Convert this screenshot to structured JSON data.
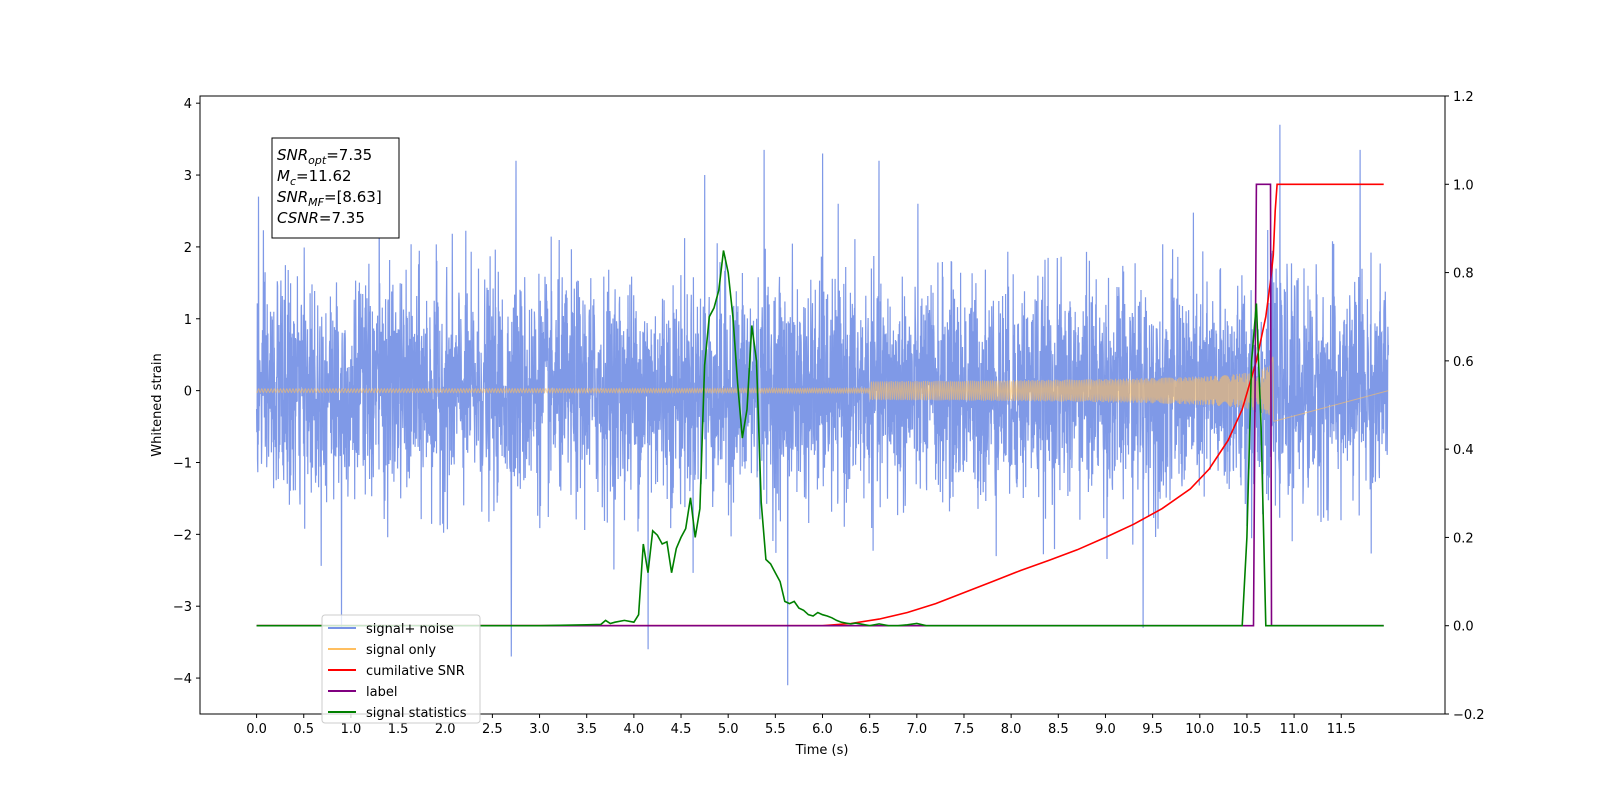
{
  "chart_data": {
    "type": "line",
    "xlabel": "Time (s)",
    "ylabel": "Whitened strain",
    "xlim": [
      -0.6,
      12.6
    ],
    "ylim": [
      -4.5,
      4.1
    ],
    "y2lim": [
      -0.2,
      1.2
    ],
    "xticks": [
      "0.0",
      "0.5",
      "1.0",
      "1.5",
      "2.0",
      "2.5",
      "3.0",
      "3.5",
      "4.0",
      "4.5",
      "5.0",
      "5.5",
      "6.0",
      "6.5",
      "7.0",
      "7.5",
      "8.0",
      "8.5",
      "9.0",
      "9.5",
      "10.0",
      "10.5",
      "11.0",
      "11.5"
    ],
    "xtick_values": [
      0,
      0.5,
      1,
      1.5,
      2,
      2.5,
      3,
      3.5,
      4,
      4.5,
      5,
      5.5,
      6,
      6.5,
      7,
      7.5,
      8,
      8.5,
      9,
      9.5,
      10,
      10.5,
      11,
      11.5
    ],
    "yticks": [
      4,
      3,
      2,
      1,
      0,
      -1,
      -2,
      -3,
      -4
    ],
    "ytick_labels": [
      "4",
      "3",
      "2",
      "1",
      "0",
      "−1",
      "−2",
      "−3",
      "−4"
    ],
    "y2ticks": [
      1.2,
      1.0,
      0.8,
      0.6,
      0.4,
      0.2,
      0.0,
      -0.2
    ],
    "y2tick_labels": [
      "1.2",
      "1.0",
      "0.8",
      "0.6",
      "0.4",
      "0.2",
      "0.0",
      "−0.2"
    ],
    "grid": false,
    "legend_position": "lower-left",
    "stats_box": {
      "lines": [
        {
          "base": "SNR",
          "sub": "opt",
          "rest": "=7.35"
        },
        {
          "base": "M",
          "sub": "c",
          "rest": "=11.62"
        },
        {
          "base": "SNR",
          "sub": "MF",
          "rest": "=[8.63]"
        },
        {
          "base": "CSNR",
          "sub": "",
          "rest": "=7.35"
        }
      ]
    },
    "series": [
      {
        "name": "signal+ noise",
        "axis": "left",
        "color": "#7893e6",
        "kind": "noise",
        "t_range": [
          0,
          12
        ],
        "amplitude_sigma": 0.75,
        "spikes": [
          {
            "x": 0.02,
            "y": 2.7
          },
          {
            "x": 0.9,
            "y": -3.3
          },
          {
            "x": 1.3,
            "y": 3.2
          },
          {
            "x": 2.7,
            "y": -3.7
          },
          {
            "x": 2.75,
            "y": 3.2
          },
          {
            "x": 4.15,
            "y": -3.6
          },
          {
            "x": 4.75,
            "y": 3.0
          },
          {
            "x": 5.38,
            "y": 3.35
          },
          {
            "x": 5.63,
            "y": -4.1
          },
          {
            "x": 6.0,
            "y": 3.3
          },
          {
            "x": 6.6,
            "y": 3.2
          },
          {
            "x": 9.4,
            "y": -3.3
          },
          {
            "x": 10.85,
            "y": 3.7
          },
          {
            "x": 11.7,
            "y": 3.35
          }
        ]
      },
      {
        "name": "signal only",
        "axis": "left",
        "color": "#ffbf60",
        "kind": "chirp",
        "t_range": [
          0,
          10.8
        ],
        "peak_amplitude": 0.5
      },
      {
        "name": "cumilative SNR",
        "axis": "right",
        "color": "#ff0000",
        "x": [
          0,
          6.0,
          6.3,
          6.6,
          6.9,
          7.2,
          7.5,
          7.8,
          8.1,
          8.4,
          8.7,
          9.0,
          9.3,
          9.6,
          9.9,
          10.1,
          10.3,
          10.45,
          10.6,
          10.7,
          10.75,
          10.78,
          10.8,
          10.82,
          11.0,
          11.5,
          11.95
        ],
        "y": [
          0,
          0,
          0.005,
          0.015,
          0.03,
          0.05,
          0.075,
          0.1,
          0.125,
          0.148,
          0.172,
          0.2,
          0.23,
          0.265,
          0.31,
          0.355,
          0.42,
          0.49,
          0.6,
          0.7,
          0.78,
          0.84,
          0.94,
          1.0,
          1.0,
          1.0,
          1.0
        ]
      },
      {
        "name": "label",
        "axis": "right",
        "color": "#800080",
        "x": [
          0,
          10.57,
          10.6,
          10.75,
          10.76,
          11.95
        ],
        "y": [
          0,
          0,
          1.0,
          1.0,
          0,
          0
        ]
      },
      {
        "name": "signal statistics",
        "axis": "right",
        "color": "#008000",
        "x": [
          0,
          3.0,
          3.5,
          3.65,
          3.7,
          3.75,
          3.8,
          3.9,
          4.0,
          4.05,
          4.1,
          4.15,
          4.2,
          4.25,
          4.3,
          4.35,
          4.4,
          4.45,
          4.5,
          4.55,
          4.6,
          4.65,
          4.7,
          4.75,
          4.8,
          4.85,
          4.9,
          4.95,
          5.0,
          5.05,
          5.1,
          5.15,
          5.2,
          5.25,
          5.3,
          5.35,
          5.4,
          5.45,
          5.5,
          5.55,
          5.6,
          5.65,
          5.7,
          5.75,
          5.8,
          5.85,
          5.9,
          5.95,
          6.0,
          6.05,
          6.1,
          6.15,
          6.2,
          6.25,
          6.3,
          6.35,
          6.4,
          6.5,
          6.6,
          6.7,
          6.8,
          6.9,
          7.0,
          7.1,
          7.2,
          7.3,
          7.4,
          7.5,
          8.0,
          9.0,
          10.0,
          10.45,
          10.5,
          10.55,
          10.6,
          10.65,
          10.7,
          10.75,
          10.8,
          10.85,
          11.95
        ],
        "y": [
          0,
          0,
          0.002,
          0.003,
          0.012,
          0.005,
          0.008,
          0.012,
          0.008,
          0.025,
          0.185,
          0.12,
          0.215,
          0.205,
          0.185,
          0.19,
          0.12,
          0.175,
          0.2,
          0.22,
          0.29,
          0.2,
          0.265,
          0.59,
          0.7,
          0.72,
          0.76,
          0.85,
          0.8,
          0.7,
          0.55,
          0.425,
          0.49,
          0.68,
          0.6,
          0.28,
          0.15,
          0.14,
          0.12,
          0.1,
          0.055,
          0.05,
          0.055,
          0.04,
          0.035,
          0.025,
          0.022,
          0.03,
          0.025,
          0.022,
          0.018,
          0.012,
          0.008,
          0.006,
          0.004,
          0.006,
          0.004,
          0.0,
          0.004,
          0.0,
          0.0,
          0.002,
          0.005,
          0.0,
          0.0,
          0.0,
          0.0,
          0.0,
          0.0,
          0.0,
          0.0,
          0.0,
          0.2,
          0.6,
          0.73,
          0.45,
          0.0,
          0.0,
          0.0,
          0.0,
          0.0
        ]
      }
    ],
    "legend": [
      {
        "label": "signal+ noise",
        "color": "#7893e6"
      },
      {
        "label": "signal only",
        "color": "#ffbf60"
      },
      {
        "label": "cumilative SNR",
        "color": "#ff0000"
      },
      {
        "label": "label",
        "color": "#800080"
      },
      {
        "label": "signal statistics",
        "color": "#008000"
      }
    ]
  }
}
